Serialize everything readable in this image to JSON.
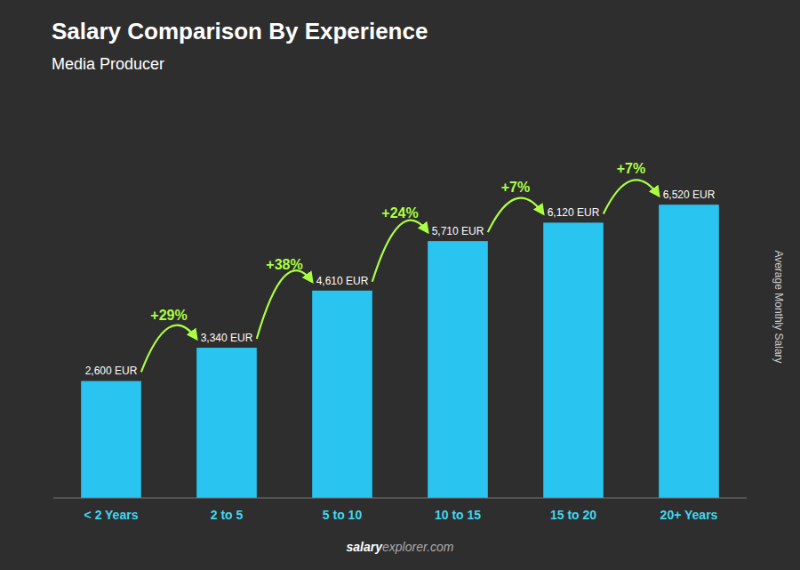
{
  "chart_data": {
    "type": "bar",
    "title": "Salary Comparison By Experience",
    "subtitle": "Media Producer",
    "ylabel": "Average Monthly Salary",
    "categories": [
      "< 2 Years",
      "2 to 5",
      "5 to 10",
      "10 to 15",
      "15 to 20",
      "20+ Years"
    ],
    "values": [
      2600,
      3340,
      4610,
      5710,
      6120,
      6520
    ],
    "value_labels": [
      "2,600 EUR",
      "3,340 EUR",
      "4,610 EUR",
      "5,710 EUR",
      "6,120 EUR",
      "6,520 EUR"
    ],
    "annotations": [
      "+29%",
      "+38%",
      "+24%",
      "+7%",
      "+7%"
    ],
    "source": [
      "salary",
      "explorer.com"
    ],
    "color": "#29c5f0",
    "ylim": [
      0,
      8500
    ],
    "data_labels": true,
    "tick_labels": "x",
    "grid": false
  }
}
